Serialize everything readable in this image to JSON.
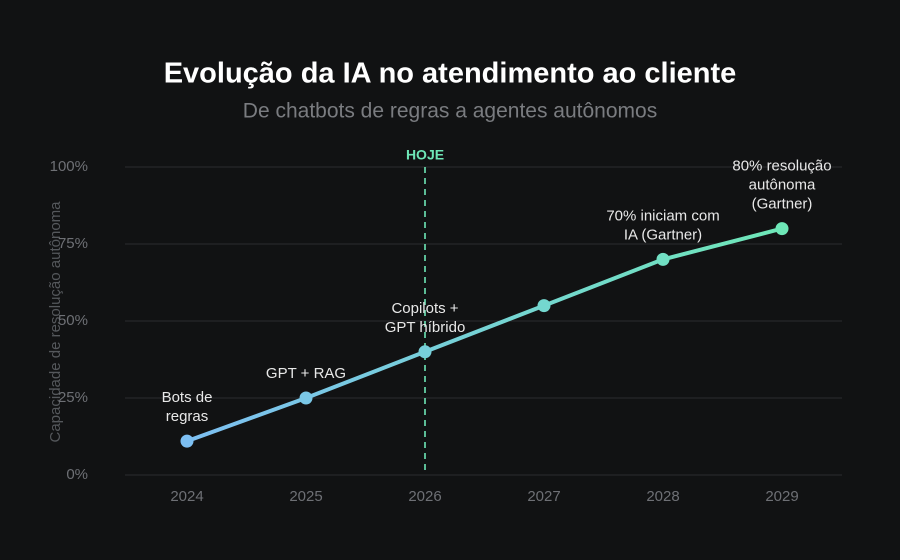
{
  "chart_data": {
    "type": "line",
    "title": "Evolução da IA no atendimento ao cliente",
    "subtitle": "De chatbots de regras a agentes autônomos",
    "y_label": "Capacidade de resolução autônoma",
    "categories": [
      "2024",
      "2025",
      "2026",
      "2027",
      "2028",
      "2029"
    ],
    "values": [
      11,
      25,
      40,
      55,
      70,
      80
    ],
    "point_labels": [
      [
        "Bots de",
        "regras"
      ],
      [
        "GPT + RAG"
      ],
      [
        "Copilots +",
        "GPT híbrido"
      ],
      null,
      [
        "70% iniciam com",
        "IA (Gartner)"
      ],
      [
        "80% resolução",
        "autônoma",
        "(Gartner)"
      ]
    ],
    "color_start": "#7dbff2",
    "color_end": "#6ee7b7",
    "today_marker": {
      "x": "2026",
      "label": "HOJE",
      "color": "#6ee7b7"
    },
    "ylim": [
      0,
      100
    ],
    "yticks": [
      {
        "value": 0,
        "label": "0%"
      },
      {
        "value": 25,
        "label": "25%"
      },
      {
        "value": 50,
        "label": "50%"
      },
      {
        "value": 75,
        "label": "75%"
      },
      {
        "value": 100,
        "label": "100%"
      }
    ],
    "grid": true
  }
}
